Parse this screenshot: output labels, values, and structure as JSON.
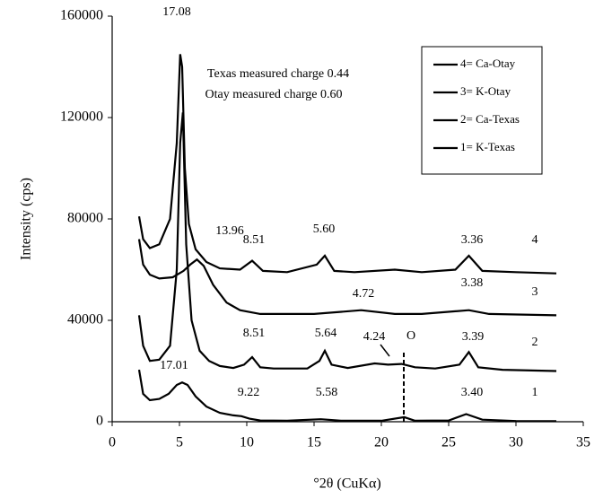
{
  "chart_data": {
    "type": "line",
    "x_label": "°2θ (CuKα)",
    "y_label": "Intensity (cps)",
    "xlim": [
      0,
      35
    ],
    "xticks": [
      0,
      5,
      10,
      15,
      20,
      25,
      30,
      35
    ],
    "ylim": [
      0,
      160000
    ],
    "yticks": [
      0,
      40000,
      80000,
      120000,
      160000
    ],
    "grid": false,
    "legend": "upper right",
    "series": [
      {
        "name": "4= Ca-Otay",
        "color": "#000000",
        "x": [
          2,
          2.3,
          2.8,
          3.5,
          4.3,
          4.8,
          5.05,
          5.2,
          5.4,
          5.7,
          6.2,
          7,
          8,
          9.5,
          10.4,
          11.2,
          13,
          15.2,
          15.8,
          16.5,
          18,
          21,
          23,
          25.5,
          26.5,
          27.5,
          30,
          33
        ],
        "values": [
          81000,
          72000,
          68500,
          70000,
          80000,
          110000,
          145000,
          140000,
          100000,
          78000,
          68000,
          63000,
          60500,
          60000,
          63500,
          59500,
          59000,
          62000,
          65500,
          59500,
          59000,
          60000,
          59000,
          60000,
          65500,
          59500,
          59000,
          58500
        ]
      },
      {
        "name": "3= K-Otay",
        "color": "#000000",
        "x": [
          2,
          2.3,
          2.8,
          3.5,
          4.5,
          5.3,
          5.8,
          6.3,
          6.8,
          7.5,
          8.5,
          9.5,
          11,
          15,
          18.5,
          21,
          23,
          26.5,
          28,
          33
        ],
        "values": [
          72000,
          62000,
          58000,
          56500,
          57000,
          59500,
          62000,
          64000,
          61500,
          54000,
          47000,
          44000,
          42500,
          42500,
          44000,
          42500,
          42500,
          44000,
          42500,
          42000
        ]
      },
      {
        "name": "2= Ca-Texas",
        "color": "#000000",
        "x": [
          2,
          2.3,
          2.8,
          3.5,
          4.3,
          4.8,
          5.05,
          5.25,
          5.5,
          5.9,
          6.5,
          7.2,
          8,
          9,
          9.8,
          10.4,
          11,
          12,
          14.5,
          15.4,
          15.8,
          16.3,
          17.5,
          19.5,
          20.5,
          21.5,
          22.5,
          24,
          25.8,
          26.5,
          27.2,
          29,
          33
        ],
        "values": [
          42000,
          30000,
          24000,
          24500,
          30000,
          60000,
          110000,
          122000,
          70000,
          40000,
          28000,
          24000,
          22000,
          21200,
          22500,
          25500,
          21500,
          21000,
          21000,
          24000,
          28000,
          22500,
          21200,
          23000,
          22500,
          22800,
          21500,
          21000,
          22500,
          27500,
          21500,
          20500,
          20000
        ]
      },
      {
        "name": "1= K-Texas",
        "color": "#000000",
        "x": [
          2,
          2.3,
          2.8,
          3.5,
          4.2,
          4.8,
          5.2,
          5.6,
          6.2,
          7,
          8,
          9,
          9.6,
          10.2,
          11,
          13,
          15.5,
          17,
          20,
          21.7,
          22.5,
          25,
          26.3,
          27.5,
          30,
          33
        ],
        "values": [
          20500,
          11000,
          8500,
          9000,
          11000,
          14500,
          15500,
          14500,
          10000,
          6000,
          3500,
          2500,
          2200,
          1200,
          500,
          400,
          1000,
          400,
          400,
          1800,
          400,
          500,
          3000,
          800,
          300,
          200
        ]
      }
    ],
    "annotations": [
      "17.08",
      "Texas measured charge 0.44",
      "Otay measured charge 0.60",
      "13.96",
      "8.51",
      "5.60",
      "3.36",
      "4",
      "4.72",
      "3.38",
      "3",
      "8.51",
      "5.64",
      "4.24",
      "O",
      "3.39",
      "2",
      "17.01",
      "9.22",
      "5.58",
      "3.40",
      "1"
    ]
  }
}
